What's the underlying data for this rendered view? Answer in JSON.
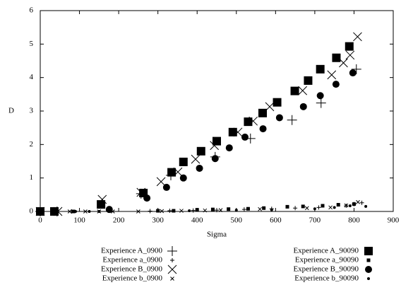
{
  "chart_data": {
    "type": "scatter",
    "xlabel": "Sigma",
    "ylabel": "D",
    "xlim": [
      0,
      900
    ],
    "xticks": [
      0,
      100,
      200,
      300,
      400,
      500,
      600,
      700,
      800,
      900
    ],
    "ylim": [
      0,
      6
    ],
    "yticks": [
      0,
      1,
      2,
      3,
      4,
      5,
      6
    ],
    "series": [
      {
        "name": "Experience A_0900",
        "color": "#000000",
        "marker": "plus",
        "marker_size": 7,
        "x": [
          0,
          43,
          257,
          333,
          446,
          536,
          642,
          716,
          806
        ],
        "values": [
          0,
          0,
          0.53,
          1.08,
          1.63,
          2.18,
          2.73,
          3.24,
          4.25
        ]
      },
      {
        "name": "Experience a_0900",
        "color": "#000000",
        "marker": "plus",
        "marker_size": 3,
        "x": [
          80,
          280,
          330,
          390,
          450,
          520,
          590,
          650,
          710,
          780,
          800,
          820
        ],
        "values": [
          0,
          0.01,
          0.02,
          0.03,
          0.04,
          0.06,
          0.08,
          0.1,
          0.12,
          0.17,
          0.22,
          0.26
        ]
      },
      {
        "name": "Experience B_0900",
        "color": "#000000",
        "marker": "cross",
        "marker_size": 6,
        "x": [
          0,
          45,
          158,
          257,
          308,
          351,
          396,
          444,
          504,
          543,
          585,
          669,
          743,
          773,
          790,
          809
        ],
        "values": [
          0,
          0,
          0.36,
          0.57,
          0.89,
          1.18,
          1.56,
          1.97,
          2.37,
          2.7,
          3.13,
          3.61,
          4.08,
          4.44,
          4.67,
          5.22
        ]
      },
      {
        "name": "Experience b_0900",
        "color": "#000000",
        "marker": "cross",
        "marker_size": 2.5,
        "x": [
          75,
          115,
          150,
          185,
          250,
          310,
          360,
          420,
          460,
          560,
          680,
          740,
          780,
          810
        ],
        "values": [
          0,
          0,
          0,
          0,
          0,
          0.01,
          0.02,
          0.03,
          0.04,
          0.07,
          0.1,
          0.12,
          0.18,
          0.28
        ]
      },
      {
        "name": "Experience A_90090",
        "color": "#000000",
        "marker": "square",
        "marker_size": 6,
        "x": [
          0,
          36,
          155,
          263,
          335,
          365,
          410,
          450,
          491,
          530,
          567,
          604,
          649,
          683,
          714,
          755,
          788
        ],
        "values": [
          0,
          0,
          0.21,
          0.55,
          1.17,
          1.48,
          1.8,
          2.1,
          2.37,
          2.68,
          2.94,
          3.26,
          3.6,
          3.91,
          4.25,
          4.59,
          4.93
        ]
      },
      {
        "name": "Experience a_90090",
        "color": "#000000",
        "marker": "square",
        "marker_size": 2.5,
        "x": [
          85,
          300,
          340,
          400,
          440,
          480,
          530,
          570,
          630,
          670,
          720,
          760,
          800
        ],
        "values": [
          0,
          0.02,
          0.02,
          0.05,
          0.06,
          0.07,
          0.08,
          0.1,
          0.14,
          0.15,
          0.17,
          0.2,
          0.22
        ]
      },
      {
        "name": "Experience B_90090",
        "color": "#000000",
        "marker": "circle",
        "marker_size": 5,
        "x": [
          176,
          272,
          322,
          365,
          406,
          446,
          482,
          522,
          568,
          610,
          671,
          714,
          754,
          797
        ],
        "values": [
          0.06,
          0.4,
          0.72,
          1.0,
          1.29,
          1.58,
          1.9,
          2.22,
          2.47,
          2.8,
          3.13,
          3.46,
          3.8,
          4.14
        ]
      },
      {
        "name": "Experience b_90090",
        "color": "#000000",
        "marker": "circle",
        "marker_size": 2,
        "x": [
          90,
          125,
          150,
          300,
          380,
          500,
          590,
          700,
          750,
          790,
          830
        ],
        "values": [
          0,
          0,
          0,
          0.01,
          0.02,
          0.04,
          0.05,
          0.08,
          0.12,
          0.17,
          0.15
        ]
      }
    ]
  }
}
